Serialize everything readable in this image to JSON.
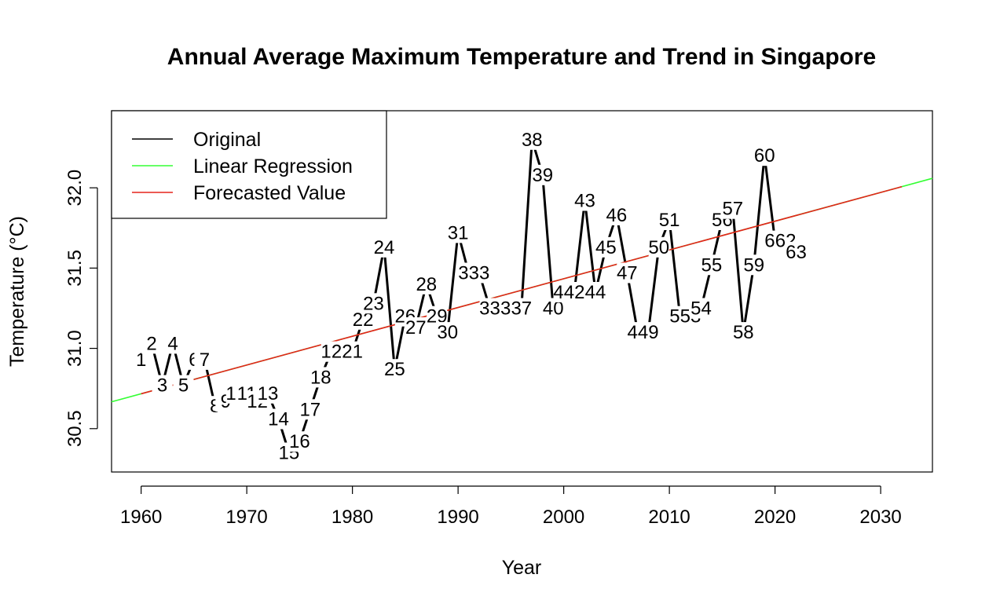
{
  "chart_data": {
    "type": "line",
    "title": "Annual Average Maximum Temperature and Trend in Singapore",
    "xlabel": "Year",
    "ylabel": "Temperature (°C)",
    "xlim": [
      1957.2,
      2034.9
    ],
    "ylim": [
      30.23,
      32.48
    ],
    "x_ticks": [
      1960,
      1970,
      1980,
      1990,
      2000,
      2010,
      2020,
      2030
    ],
    "y_ticks": [
      30.5,
      31.0,
      31.5,
      32.0
    ],
    "x_tick_labels": [
      "1960",
      "1970",
      "1980",
      "1990",
      "2000",
      "2010",
      "2020",
      "2030"
    ],
    "y_tick_labels": [
      "30.5",
      "31.0",
      "31.5",
      "32.0"
    ],
    "legend": {
      "position": "top-left",
      "entries": [
        {
          "label": "Original",
          "color": "#000000"
        },
        {
          "label": "Linear Regression",
          "color": "#33ff33"
        },
        {
          "label": "Forecasted Value",
          "color": "#e5231b"
        }
      ]
    },
    "series": [
      {
        "name": "Original",
        "color": "#000000",
        "x": [
          1960,
          1961,
          1962,
          1963,
          1964,
          1965,
          1966,
          1967,
          1968,
          1969,
          1970,
          1971,
          1972,
          1973,
          1974,
          1975,
          1976,
          1977,
          1978,
          1979,
          1980,
          1981,
          1982,
          1983,
          1984,
          1985,
          1986,
          1987,
          1988,
          1989,
          1990,
          1991,
          1992,
          1993,
          1994,
          1995,
          1996,
          1997,
          1998,
          1999,
          2000,
          2001,
          2002,
          2003,
          2004,
          2005,
          2006,
          2007,
          2008,
          2009,
          2010,
          2011,
          2012,
          2013,
          2014,
          2015,
          2016,
          2017,
          2018,
          2019,
          2020,
          2021,
          2022
        ],
        "y": [
          30.93,
          31.03,
          30.77,
          31.03,
          30.77,
          30.93,
          30.93,
          30.64,
          30.67,
          30.72,
          30.72,
          30.67,
          30.72,
          30.56,
          30.35,
          30.42,
          30.62,
          30.82,
          30.98,
          30.98,
          30.98,
          31.18,
          31.28,
          31.63,
          30.87,
          31.2,
          31.13,
          31.4,
          31.2,
          31.1,
          31.72,
          31.47,
          31.47,
          31.25,
          31.25,
          31.25,
          31.25,
          32.3,
          32.08,
          31.25,
          31.35,
          31.35,
          31.92,
          31.35,
          31.63,
          31.83,
          31.47,
          31.1,
          31.1,
          31.63,
          31.8,
          31.2,
          31.2,
          31.25,
          31.52,
          31.8,
          31.87,
          31.1,
          31.52,
          32.2,
          31.67,
          31.67,
          31.6
        ],
        "labels": [
          "1",
          "2",
          "3",
          "4",
          "5",
          "6",
          "7",
          "8",
          "9",
          "10",
          "11",
          "12",
          "13",
          "14",
          "15",
          "16",
          "17",
          "18",
          "19",
          "20",
          "21",
          "22",
          "23",
          "24",
          "25",
          "26",
          "27",
          "28",
          "29",
          "30",
          "31",
          "32",
          "33",
          "34",
          "35",
          "36",
          "37",
          "38",
          "39",
          "40",
          "41",
          "42",
          "43",
          "44",
          "45",
          "46",
          "47",
          "48",
          "49",
          "50",
          "51",
          "52",
          "53",
          "54",
          "55",
          "56",
          "57",
          "58",
          "59",
          "60",
          "61",
          "62",
          "63"
        ]
      },
      {
        "name": "Linear Regression",
        "color": "#33ff33",
        "x": [
          1957.2,
          2034.9
        ],
        "y": [
          30.667,
          32.059
        ]
      },
      {
        "name": "Forecasted Value",
        "color": "#e5231b",
        "x": [
          1960,
          2032
        ],
        "y": [
          30.717,
          32.007
        ]
      }
    ]
  }
}
